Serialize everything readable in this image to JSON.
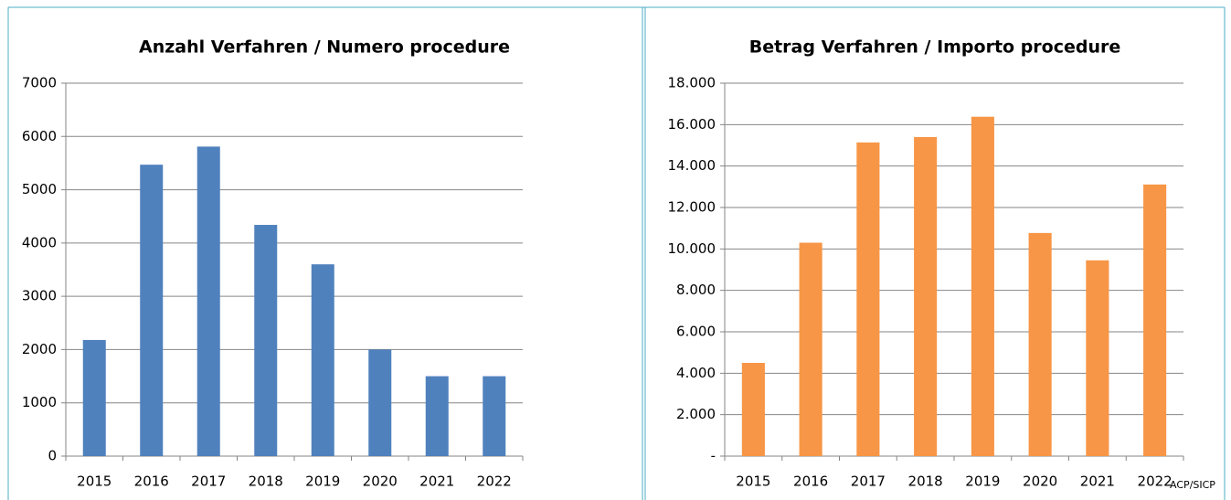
{
  "chart_data": [
    {
      "type": "bar",
      "title": "Anzahl Verfahren / Numero procedure",
      "categories": [
        "2015",
        "2016",
        "2017",
        "2018",
        "2019",
        "2020",
        "2021",
        "2022"
      ],
      "values": [
        2180,
        5470,
        5810,
        4340,
        3600,
        2000,
        1500,
        1500
      ],
      "color": "#4f81bd",
      "ylim": [
        0,
        7000
      ],
      "yticks": [
        0,
        1000,
        2000,
        3000,
        4000,
        5000,
        6000,
        7000
      ],
      "grid": true
    },
    {
      "type": "bar",
      "title": "Betrag Verfahren / Importo procedure",
      "categories": [
        "2015",
        "2016",
        "2017",
        "2018",
        "2019",
        "2020",
        "2021",
        "2022"
      ],
      "values": [
        4500,
        10300,
        15140,
        15400,
        16380,
        10770,
        9450,
        13110
      ],
      "color": "#f79646",
      "ylim": [
        0,
        18000
      ],
      "yticks": [
        {
          "value": 0,
          "label": "-"
        },
        {
          "value": 2000,
          "label": "2.000"
        },
        {
          "value": 4000,
          "label": "4.000"
        },
        {
          "value": 6000,
          "label": "6.000"
        },
        {
          "value": 8000,
          "label": "8.000"
        },
        {
          "value": 10000,
          "label": "10.000"
        },
        {
          "value": 12000,
          "label": "12.000"
        },
        {
          "value": 14000,
          "label": "14.000"
        },
        {
          "value": 16000,
          "label": "16.000"
        },
        {
          "value": 18000,
          "label": "18.000"
        }
      ],
      "grid": true
    }
  ],
  "source": "ACP/SICP"
}
